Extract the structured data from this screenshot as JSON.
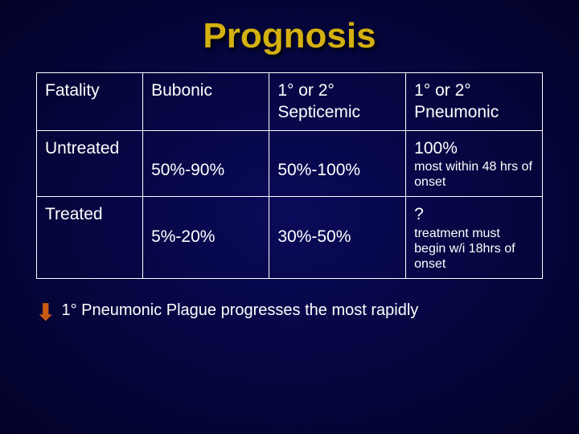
{
  "title": "Prognosis",
  "headers": {
    "c0": "Fatality",
    "c1": "Bubonic",
    "c2": "1° or 2° Septicemic",
    "c3": "1° or 2° Pneumonic"
  },
  "rows": {
    "untreated": {
      "label": "Untreated",
      "bubonic": "50%-90%",
      "septicemic": "50%-100%",
      "pneumonic_top": "100%",
      "pneumonic_note": "most within 48 hrs of onset"
    },
    "treated": {
      "label": "Treated",
      "bubonic": "5%-20%",
      "septicemic": "30%-50%",
      "pneumonic_top": "?",
      "pneumonic_note": "treatment must begin w/i 18hrs of onset"
    }
  },
  "footnote": "1° Pneumonic Plague progresses the most rapidly",
  "colors": {
    "title": "#d4b010",
    "arrow": "#c75a12",
    "text": "#ffffff",
    "border": "#ffffff"
  }
}
